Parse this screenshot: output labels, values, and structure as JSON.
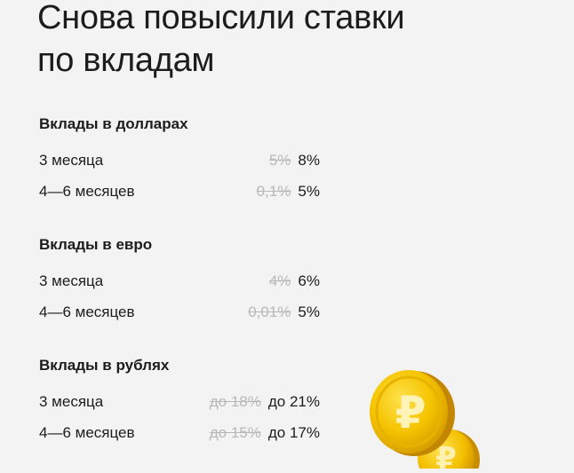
{
  "title": {
    "line1": "Снова повысили ставки",
    "line2": "по вкладам"
  },
  "sections": [
    {
      "title": "Вклады в долларах",
      "rows": [
        {
          "term": "3 месяца",
          "old_rate": "5%",
          "new_rate": "8%"
        },
        {
          "term": "4—6 месяцев",
          "old_rate": "0,1%",
          "new_rate": "5%"
        }
      ]
    },
    {
      "title": "Вклады в евро",
      "rows": [
        {
          "term": "3 месяца",
          "old_rate": "4%",
          "new_rate": "6%"
        },
        {
          "term": "4—6 месяцев",
          "old_rate": "0,01%",
          "new_rate": "5%"
        }
      ]
    },
    {
      "title": "Вклады в рублях",
      "rows": [
        {
          "term": "3 месяца",
          "old_rate": "до 18%",
          "new_rate": "до 21%"
        },
        {
          "term": "4—6 месяцев",
          "old_rate": "до 15%",
          "new_rate": "до 17%"
        }
      ]
    }
  ],
  "colors": {
    "background": "#f3f3f3",
    "text": "#1c1c1c",
    "struck_rate": "#b8b8b8",
    "coin_gold": "#f5c400"
  },
  "decor": {
    "coin_icon": "ruble-coin-icon"
  }
}
